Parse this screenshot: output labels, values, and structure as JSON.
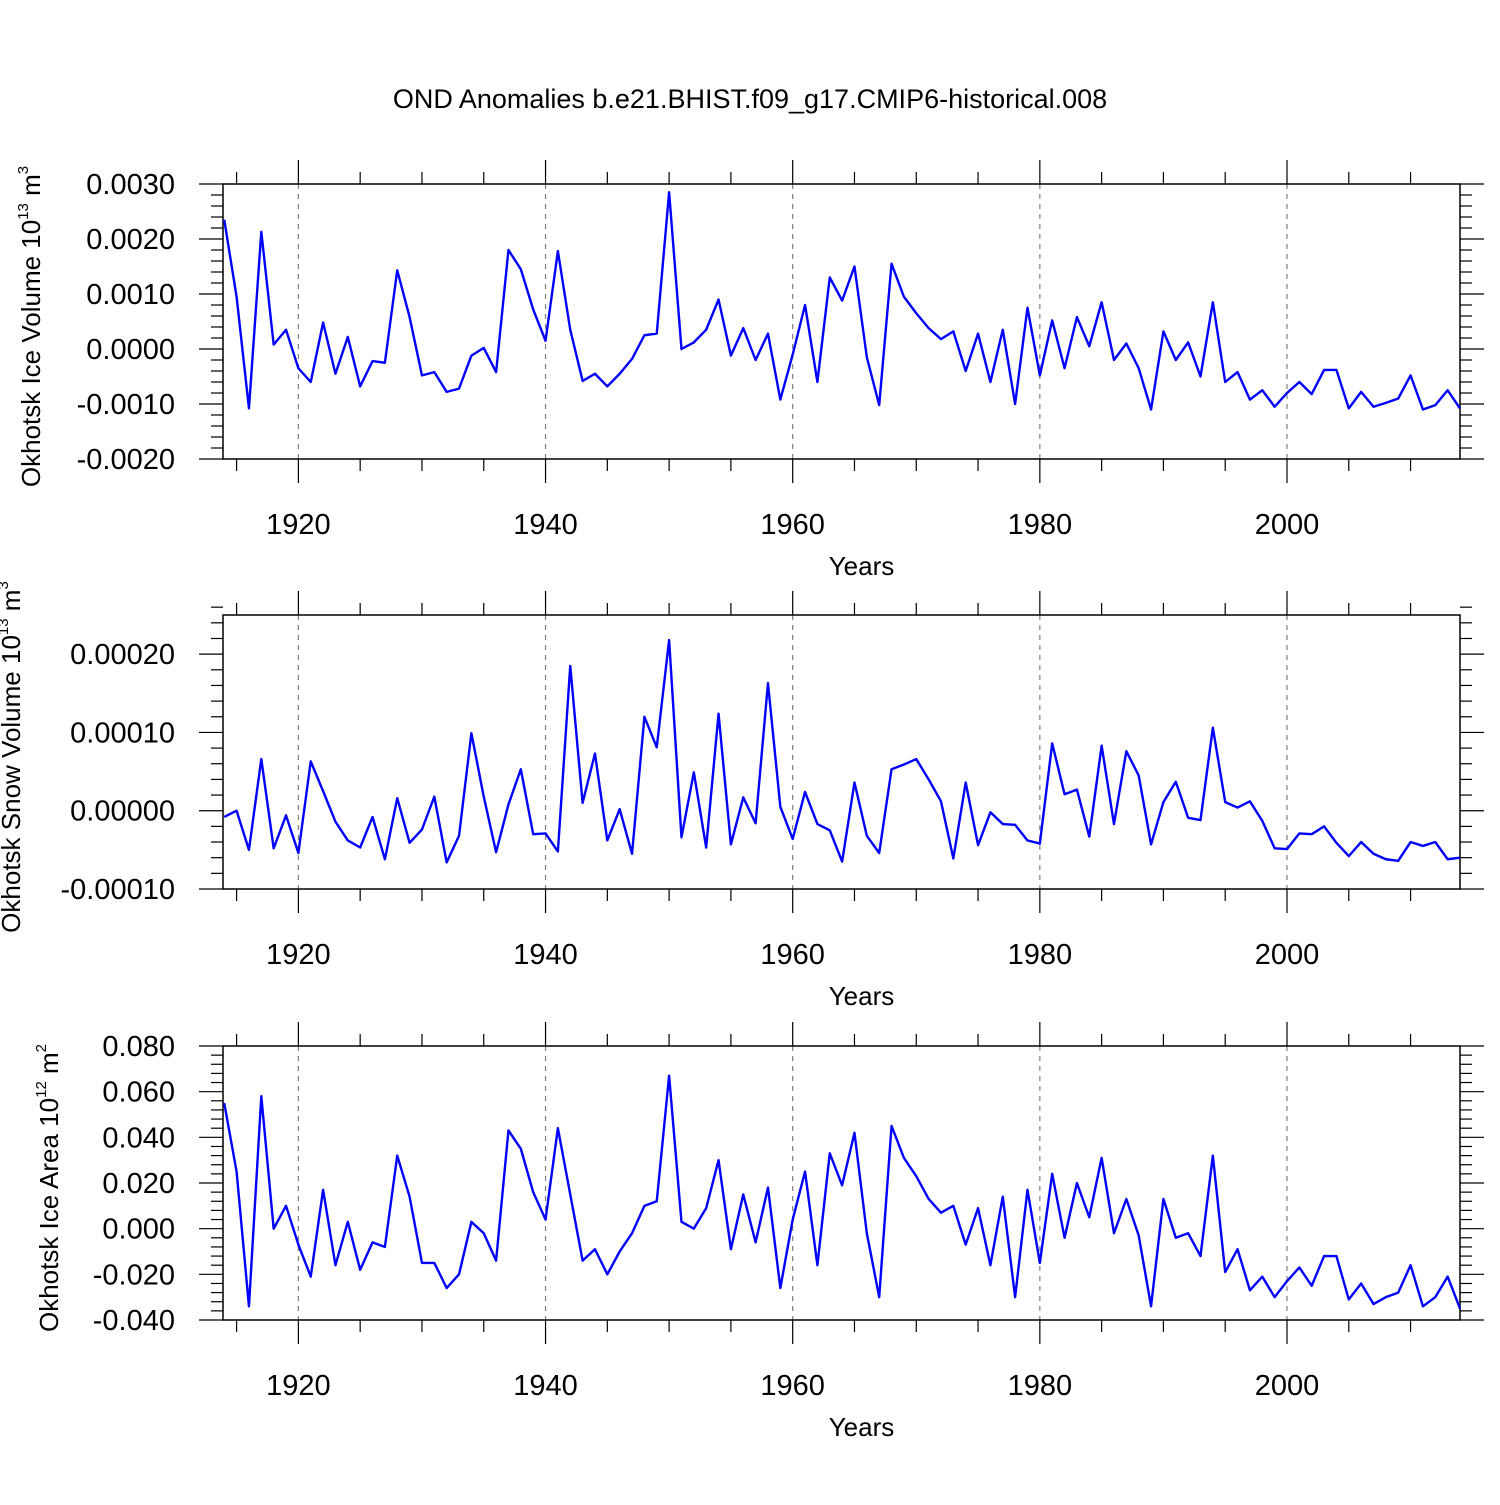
{
  "title": "OND Anomalies b.e21.BHIST.f09_g17.CMIP6-historical.008",
  "colors": {
    "line": "#0000ff",
    "axis": "#000000",
    "grid": "#7f7f7f"
  },
  "chart_data": [
    {
      "type": "line",
      "xlabel": "Years",
      "ylabel": {
        "text": "Okhotsk Ice Volume 10",
        "exponent": "13",
        "unit": "m",
        "unit_exponent": "3"
      },
      "xlim": [
        1913.9,
        2014
      ],
      "ylim": [
        -0.002,
        0.003
      ],
      "yticks": [
        -0.002,
        -0.001,
        0.0,
        0.001,
        0.002,
        0.003
      ],
      "ytick_labels": [
        "-0.0020",
        "-0.0010",
        "0.0000",
        "0.0010",
        "0.0020",
        "0.0030"
      ],
      "xticks": [
        1920,
        1940,
        1960,
        1980,
        2000
      ],
      "xtick_labels": [
        "1920",
        "1940",
        "1960",
        "1980",
        "2000"
      ],
      "grid_x": true,
      "x_start": 1914,
      "series": [
        {
          "name": "Okhotsk Ice Volume",
          "values": [
            0.00235,
            0.00095,
            -0.00108,
            0.00213,
            8e-05,
            0.00035,
            -0.00035,
            -0.0006,
            0.00048,
            -0.00045,
            0.00022,
            -0.00068,
            -0.00022,
            -0.00025,
            0.00143,
            0.00058,
            -0.00048,
            -0.00042,
            -0.00078,
            -0.00072,
            -0.00012,
            2e-05,
            -0.00042,
            0.0018,
            0.00145,
            0.00072,
            0.00015,
            0.00178,
            0.00035,
            -0.00058,
            -0.00045,
            -0.00068,
            -0.00045,
            -0.00018,
            0.00025,
            0.00028,
            0.00285,
            0.0,
            0.00012,
            0.00035,
            0.0009,
            -0.00012,
            0.00038,
            -0.0002,
            0.00028,
            -0.00092,
            -0.0001,
            0.0008,
            -0.0006,
            0.0013,
            0.00088,
            0.0015,
            -0.00015,
            -0.00102,
            0.00155,
            0.00095,
            0.00065,
            0.00038,
            0.00018,
            0.00032,
            -0.0004,
            0.00028,
            -0.0006,
            0.00035,
            -0.001,
            0.00075,
            -0.00048,
            0.00052,
            -0.00035,
            0.00058,
            5e-05,
            0.00085,
            -0.0002,
            0.0001,
            -0.00035,
            -0.0011,
            0.00032,
            -0.0002,
            0.00012,
            -0.0005,
            0.00085,
            -0.0006,
            -0.00042,
            -0.00092,
            -0.00075,
            -0.00105,
            -0.0008,
            -0.0006,
            -0.00082,
            -0.00038,
            -0.00038,
            -0.00108,
            -0.00078,
            -0.00105,
            -0.00098,
            -0.0009,
            -0.00048,
            -0.0011,
            -0.00102,
            -0.00075,
            -0.00108
          ]
        }
      ]
    },
    {
      "type": "line",
      "xlabel": "Years",
      "ylabel": {
        "text": "Okhotsk Snow Volume 10",
        "exponent": "13",
        "unit": "m",
        "unit_exponent": "3"
      },
      "xlim": [
        1913.9,
        2014
      ],
      "ylim": [
        -0.0001,
        0.00025
      ],
      "yticks": [
        -0.0001,
        0.0,
        0.0001,
        0.0002
      ],
      "ytick_labels": [
        "-0.00010",
        "0.00000",
        "0.00010",
        "0.00020"
      ],
      "xticks": [
        1920,
        1940,
        1960,
        1980,
        2000
      ],
      "xtick_labels": [
        "1920",
        "1940",
        "1960",
        "1980",
        "2000"
      ],
      "grid_x": true,
      "x_start": 1914,
      "series": [
        {
          "name": "Okhotsk Snow Volume",
          "values": [
            -8e-06,
            0.0,
            -5e-05,
            6.6e-05,
            -4.8e-05,
            -6e-06,
            -5.4e-05,
            6.3e-05,
            2.5e-05,
            -1.4e-05,
            -3.8e-05,
            -4.7e-05,
            -8e-06,
            -6.2e-05,
            1.6e-05,
            -4.1e-05,
            -2.4e-05,
            1.8e-05,
            -6.6e-05,
            -3.2e-05,
            9.9e-05,
            1.8e-05,
            -5.3e-05,
            8e-06,
            5.3e-05,
            -3e-05,
            -2.9e-05,
            -5.2e-05,
            0.000185,
            1e-05,
            7.3e-05,
            -3.8e-05,
            2e-06,
            -5.5e-05,
            0.00012,
            8.1e-05,
            0.000218,
            -3.4e-05,
            4.9e-05,
            -4.7e-05,
            0.000124,
            -4.3e-05,
            1.7e-05,
            -1.6e-05,
            0.000163,
            5e-06,
            -3.6e-05,
            2.4e-05,
            -1.7e-05,
            -2.5e-05,
            -6.5e-05,
            3.6e-05,
            -3.2e-05,
            -5.4e-05,
            5.3e-05,
            5.9e-05,
            6.6e-05,
            4e-05,
            1.2e-05,
            -6.1e-05,
            3.6e-05,
            -4.4e-05,
            -2e-06,
            -1.7e-05,
            -1.8e-05,
            -3.8e-05,
            -4.2e-05,
            8.6e-05,
            2.1e-05,
            2.7e-05,
            -3.3e-05,
            8.3e-05,
            -1.7e-05,
            7.6e-05,
            4.5e-05,
            -4.3e-05,
            1.1e-05,
            3.7e-05,
            -9e-06,
            -1.2e-05,
            0.000106,
            1.1e-05,
            4e-06,
            1.2e-05,
            -1.3e-05,
            -4.8e-05,
            -4.9e-05,
            -2.9e-05,
            -3e-05,
            -2e-05,
            -4.1e-05,
            -5.8e-05,
            -4e-05,
            -5.5e-05,
            -6.2e-05,
            -6.4e-05,
            -4e-05,
            -4.5e-05,
            -4e-05,
            -6.2e-05,
            -6e-05
          ]
        }
      ]
    },
    {
      "type": "line",
      "xlabel": "Years",
      "ylabel": {
        "text": "Okhotsk Ice Area 10",
        "exponent": "12",
        "unit": "m",
        "unit_exponent": "2"
      },
      "xlim": [
        1913.9,
        2014
      ],
      "ylim": [
        -0.04,
        0.08
      ],
      "yticks": [
        -0.04,
        -0.02,
        0.0,
        0.02,
        0.04,
        0.06,
        0.08
      ],
      "ytick_labels": [
        "-0.040",
        "-0.020",
        "0.000",
        "0.020",
        "0.040",
        "0.060",
        "0.080"
      ],
      "xticks": [
        1920,
        1940,
        1960,
        1980,
        2000
      ],
      "xtick_labels": [
        "1920",
        "1940",
        "1960",
        "1980",
        "2000"
      ],
      "grid_x": true,
      "x_start": 1914,
      "series": [
        {
          "name": "Okhotsk Ice Area",
          "values": [
            0.055,
            0.025,
            -0.034,
            0.058,
            0.0,
            0.01,
            -0.007,
            -0.021,
            0.017,
            -0.016,
            0.003,
            -0.018,
            -0.006,
            -0.008,
            0.032,
            0.014,
            -0.015,
            -0.015,
            -0.026,
            -0.02,
            0.003,
            -0.002,
            -0.014,
            0.043,
            0.035,
            0.016,
            0.004,
            0.044,
            0.015,
            -0.014,
            -0.009,
            -0.02,
            -0.01,
            -0.002,
            0.01,
            0.012,
            0.067,
            0.003,
            0.0,
            0.009,
            0.03,
            -0.009,
            0.015,
            -0.006,
            0.018,
            -0.026,
            0.004,
            0.025,
            -0.016,
            0.033,
            0.019,
            0.042,
            -0.002,
            -0.03,
            0.045,
            0.031,
            0.023,
            0.013,
            0.007,
            0.01,
            -0.007,
            0.009,
            -0.016,
            0.014,
            -0.03,
            0.017,
            -0.015,
            0.024,
            -0.004,
            0.02,
            0.005,
            0.031,
            -0.002,
            0.013,
            -0.003,
            -0.034,
            0.013,
            -0.004,
            -0.002,
            -0.012,
            0.032,
            -0.019,
            -0.009,
            -0.027,
            -0.021,
            -0.03,
            -0.023,
            -0.017,
            -0.025,
            -0.012,
            -0.012,
            -0.031,
            -0.024,
            -0.033,
            -0.03,
            -0.028,
            -0.016,
            -0.034,
            -0.03,
            -0.021,
            -0.035
          ]
        }
      ]
    }
  ]
}
